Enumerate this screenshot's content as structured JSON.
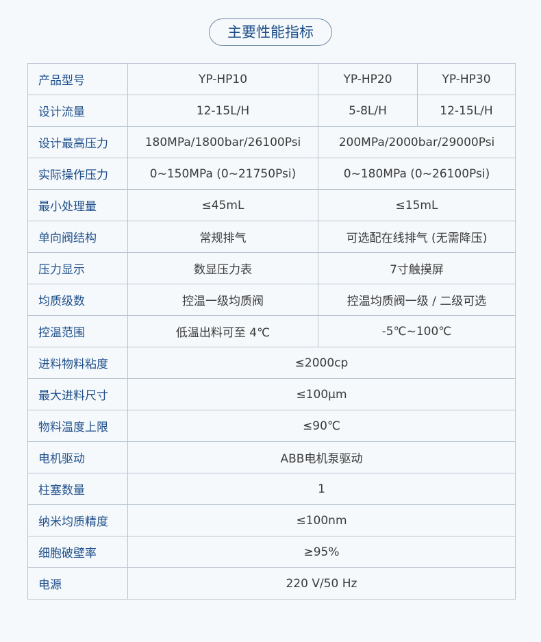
{
  "title": "主要性能指标",
  "rows": [
    {
      "label": "产品型号",
      "cells": [
        "YP-HP10",
        "YP-HP20",
        "YP-HP30"
      ]
    },
    {
      "label": "设计流量",
      "cells": [
        "12-15L/H",
        "5-8L/H",
        "12-15L/H"
      ]
    },
    {
      "label": "设计最高压力",
      "cells": [
        "180MPa/1800bar/26100Psi",
        "200MPa/2000bar/29000Psi"
      ]
    },
    {
      "label": "实际操作压力",
      "cells": [
        "0~150MPa (0~21750Psi)",
        "0~180MPa (0~26100Psi)"
      ]
    },
    {
      "label": "最小处理量",
      "cells": [
        "≤45mL",
        "≤15mL"
      ]
    },
    {
      "label": "单向阀结构",
      "cells": [
        "常规排气",
        "可选配在线排气 (无需降压)"
      ]
    },
    {
      "label": "压力显示",
      "cells": [
        "数显压力表",
        "7寸触摸屏"
      ]
    },
    {
      "label": "均质级数",
      "cells": [
        "控温一级均质阀",
        "控温均质阀一级 / 二级可选"
      ]
    },
    {
      "label": "控温范围",
      "cells": [
        "低温出料可至 4℃",
        "-5℃~100℃"
      ]
    },
    {
      "label": "进料物料粘度",
      "cells": [
        "≤2000cp"
      ]
    },
    {
      "label": "最大进料尺寸",
      "cells": [
        "≤100μm"
      ]
    },
    {
      "label": "物料温度上限",
      "cells": [
        "≤90℃"
      ]
    },
    {
      "label": "电机驱动",
      "cells": [
        "ABB电机泵驱动"
      ]
    },
    {
      "label": "柱塞数量",
      "cells": [
        "1"
      ]
    },
    {
      "label": "纳米均质精度",
      "cells": [
        "≤100nm"
      ]
    },
    {
      "label": "细胞破壁率",
      "cells": [
        "≥95%"
      ]
    },
    {
      "label": "电源",
      "cells": [
        "220 V/50 Hz"
      ]
    }
  ]
}
